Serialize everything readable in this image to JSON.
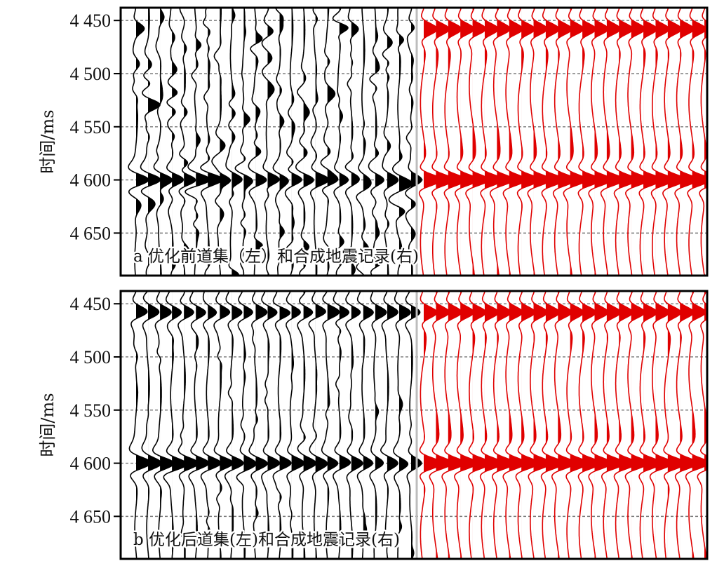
{
  "chart_data": [
    {
      "type": "seismic-wiggle",
      "caption": "a 优化前道集（左）和合成地震记录(右)",
      "ylabel": "时间/ms",
      "yticks": [
        4450,
        4500,
        4550,
        4600,
        4650
      ],
      "ytick_labels": [
        "4 450",
        "4 500",
        "4 550",
        "4 600",
        "4 650"
      ],
      "ylim": [
        4438,
        4690
      ],
      "grid": true,
      "left_panel": {
        "content": "optimized-before gather",
        "trace_count": 24,
        "color": "#000000",
        "events_ms": [
          4600
        ],
        "noisy": true
      },
      "right_panel": {
        "content": "synthetic seismogram",
        "trace_count": 24,
        "color": "#e00000",
        "events_ms": [
          4458,
          4600
        ]
      }
    },
    {
      "type": "seismic-wiggle",
      "caption": "b 优化后道集(左)和合成地震记录(右)",
      "ylabel": "时间/ms",
      "yticks": [
        4450,
        4500,
        4550,
        4600,
        4650
      ],
      "ytick_labels": [
        "4 450",
        "4 500",
        "4 550",
        "4 600",
        "4 650"
      ],
      "ylim": [
        4438,
        4690
      ],
      "grid": true,
      "left_panel": {
        "content": "optimized-after gather",
        "trace_count": 24,
        "color": "#000000",
        "events_ms": [
          4458,
          4600
        ],
        "noisy": false
      },
      "right_panel": {
        "content": "synthetic seismogram",
        "trace_count": 24,
        "color": "#e00000",
        "events_ms": [
          4458,
          4600
        ]
      }
    }
  ]
}
